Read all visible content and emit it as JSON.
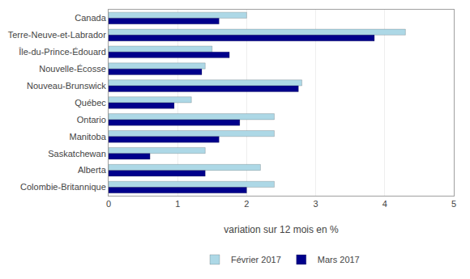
{
  "chart_data": {
    "type": "bar",
    "orientation": "horizontal",
    "categories": [
      "Canada",
      "Terre-Neuve-et-Labrador",
      "Île-du-Prince-Édouard",
      "Nouvelle-Écosse",
      "Nouveau-Brunswick",
      "Québec",
      "Ontario",
      "Manitoba",
      "Saskatchewan",
      "Alberta",
      "Colombie-Britannique"
    ],
    "series": [
      {
        "name": "Février 2017",
        "color": "#add8e6",
        "values": [
          2.0,
          4.3,
          1.5,
          1.4,
          2.8,
          1.2,
          2.4,
          2.4,
          1.4,
          2.2,
          2.4
        ]
      },
      {
        "name": "Mars 2017",
        "color": "#00008b",
        "values": [
          1.6,
          3.85,
          1.75,
          1.35,
          2.75,
          0.95,
          1.9,
          1.6,
          0.6,
          1.4,
          2.0
        ]
      }
    ],
    "xlabel": "variation sur 12 mois en %",
    "xlim": [
      0,
      5
    ],
    "xticks": [
      0,
      1,
      2,
      3,
      4,
      5
    ],
    "grid": true,
    "legend": "bottom"
  }
}
